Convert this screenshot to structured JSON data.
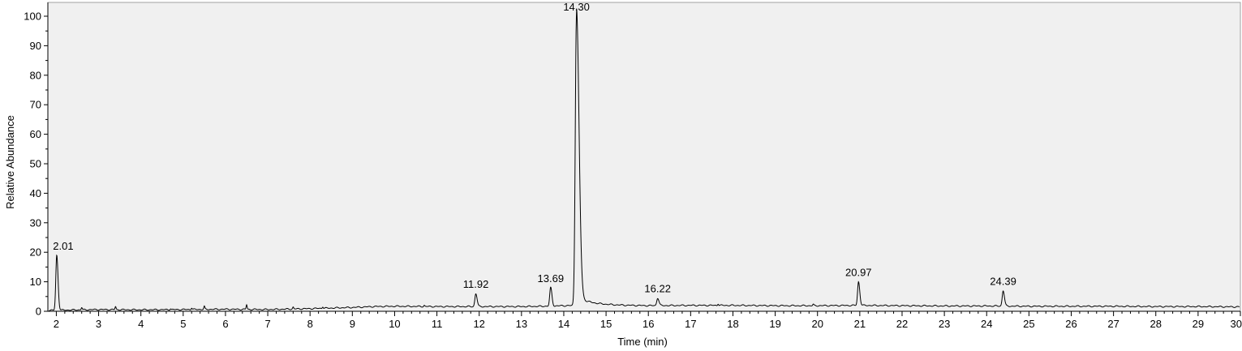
{
  "chart_data": {
    "type": "line",
    "xlabel": "Time (min)",
    "ylabel": "Relative Abundance",
    "xlim": [
      1.8,
      30
    ],
    "ylim": [
      0,
      100
    ],
    "x_ticks": [
      2,
      3,
      4,
      5,
      6,
      7,
      8,
      9,
      10,
      11,
      12,
      13,
      14,
      15,
      16,
      17,
      18,
      19,
      20,
      21,
      22,
      23,
      24,
      25,
      26,
      27,
      28,
      29,
      30
    ],
    "x_tick_labels": [
      "2",
      "3",
      "4",
      "5",
      "6",
      "7",
      "8",
      "9",
      "10",
      "11",
      "12",
      "13",
      "14",
      "15",
      "16",
      "17",
      "18",
      "19",
      "20",
      "21",
      "22",
      "23",
      "24",
      "25",
      "26",
      "27",
      "28",
      "29",
      "30"
    ],
    "y_ticks": [
      0,
      10,
      20,
      30,
      40,
      50,
      60,
      70,
      80,
      90,
      100
    ],
    "y_tick_labels": [
      "0",
      "10",
      "20",
      "30",
      "40",
      "50",
      "60",
      "70",
      "80",
      "90",
      "100"
    ],
    "grid": false,
    "background": "#f0f0f0",
    "line_color": "#000000",
    "peak_labels": [
      "2.01",
      "11.92",
      "13.69",
      "14.30",
      "16.22",
      "20.97",
      "24.39"
    ],
    "peaks": [
      {
        "rt": 2.01,
        "height": 19
      },
      {
        "rt": 11.92,
        "height": 6
      },
      {
        "rt": 13.69,
        "height": 8
      },
      {
        "rt": 14.3,
        "height": 100
      },
      {
        "rt": 16.22,
        "height": 4.5
      },
      {
        "rt": 20.97,
        "height": 10
      },
      {
        "rt": 24.39,
        "height": 7
      }
    ],
    "baseline": [
      [
        1.8,
        0.3
      ],
      [
        2.2,
        0.4
      ],
      [
        3.0,
        0.6
      ],
      [
        4.0,
        0.5
      ],
      [
        5.0,
        0.6
      ],
      [
        6.0,
        0.7
      ],
      [
        7.0,
        0.6
      ],
      [
        8.0,
        0.9
      ],
      [
        9.0,
        1.3
      ],
      [
        9.5,
        1.6
      ],
      [
        10.0,
        1.7
      ],
      [
        11.0,
        1.6
      ],
      [
        12.0,
        1.6
      ],
      [
        13.0,
        1.6
      ],
      [
        13.5,
        1.7
      ],
      [
        14.0,
        1.9
      ],
      [
        15.0,
        2.0
      ],
      [
        16.0,
        1.9
      ],
      [
        17.0,
        2.0
      ],
      [
        18.0,
        2.0
      ],
      [
        19.0,
        1.9
      ],
      [
        20.0,
        1.9
      ],
      [
        21.0,
        2.0
      ],
      [
        22.0,
        1.9
      ],
      [
        23.0,
        1.8
      ],
      [
        24.0,
        1.8
      ],
      [
        25.0,
        1.7
      ],
      [
        26.0,
        1.7
      ],
      [
        27.0,
        1.7
      ],
      [
        28.0,
        1.6
      ],
      [
        29.0,
        1.6
      ],
      [
        30.0,
        1.5
      ]
    ],
    "minor_spikes": [
      [
        2.6,
        1.3
      ],
      [
        3.4,
        1.6
      ],
      [
        4.7,
        0.9
      ],
      [
        5.2,
        1.2
      ],
      [
        5.5,
        1.6
      ],
      [
        6.5,
        2.2
      ],
      [
        7.6,
        1.4
      ],
      [
        8.3,
        1.6
      ],
      [
        10.7,
        2.0
      ],
      [
        17.65,
        2.6
      ],
      [
        19.9,
        2.3
      ]
    ]
  }
}
